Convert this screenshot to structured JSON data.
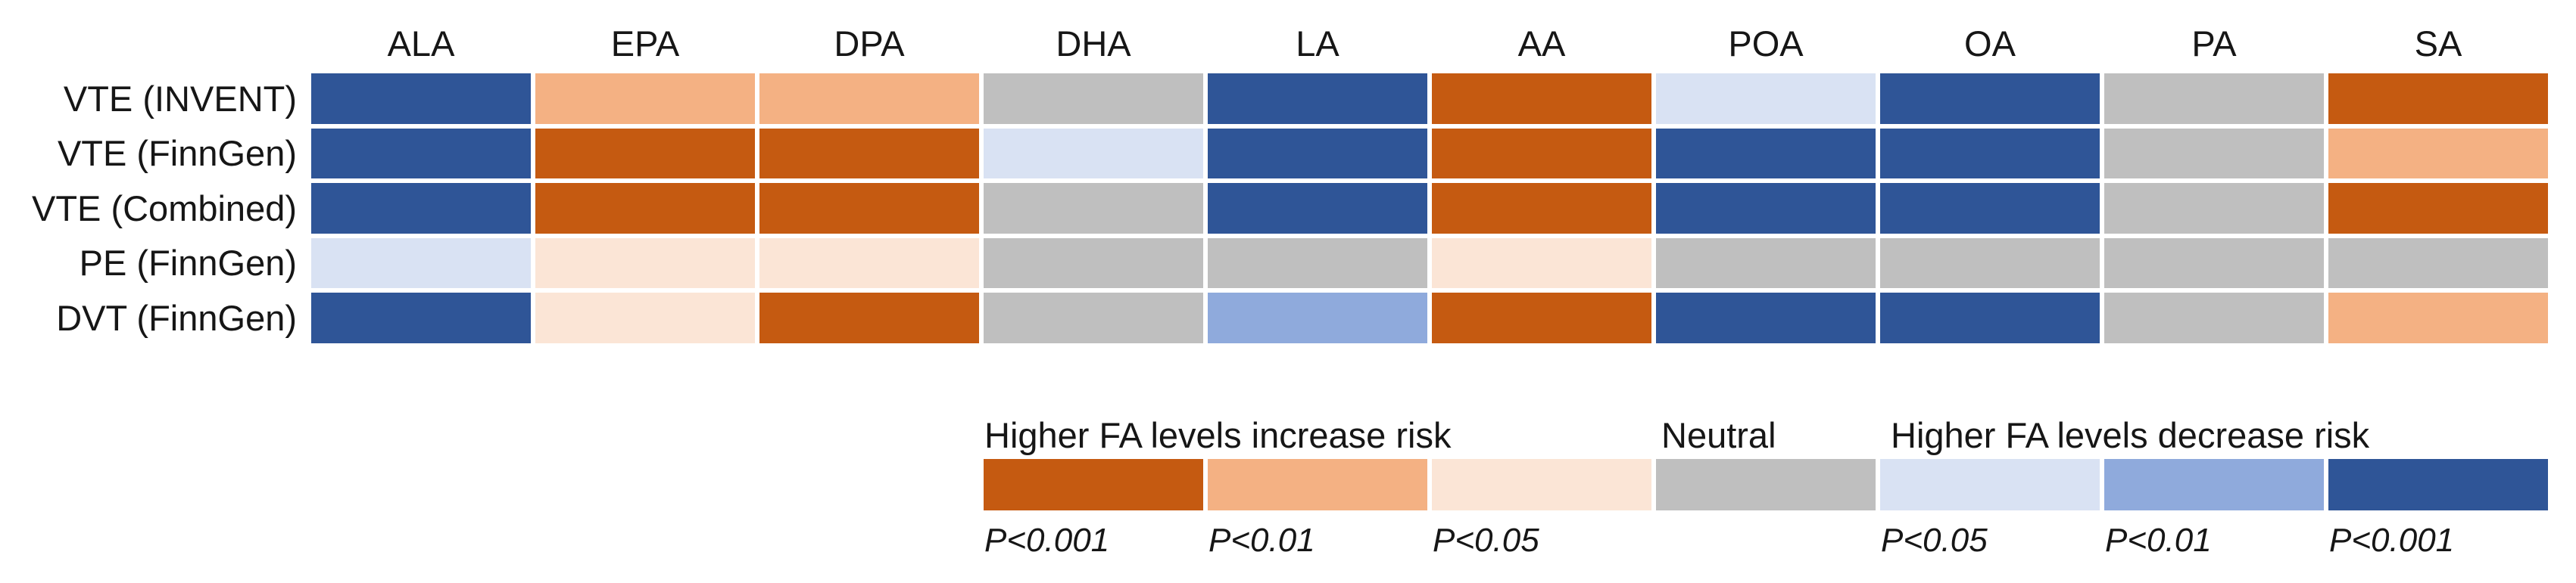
{
  "palette": {
    "increase_p001": "#C55A11",
    "increase_p01": "#F4B183",
    "increase_p05": "#FBE5D6",
    "neutral": "#BFBFBF",
    "decrease_p05": "#D9E2F3",
    "decrease_p01": "#8FAADC",
    "decrease_p001": "#2F5597"
  },
  "chart_data": {
    "type": "heatmap",
    "title": "",
    "columns": [
      "ALA",
      "EPA",
      "DPA",
      "DHA",
      "LA",
      "AA",
      "POA",
      "OA",
      "PA",
      "SA"
    ],
    "rows": [
      "VTE (INVENT)",
      "VTE (FinnGen)",
      "VTE (Combined)",
      "PE (FinnGen)",
      "DVT (FinnGen)"
    ],
    "cells": [
      [
        "decrease_p001",
        "increase_p01",
        "increase_p01",
        "neutral",
        "decrease_p001",
        "increase_p001",
        "decrease_p05",
        "decrease_p001",
        "neutral",
        "increase_p001"
      ],
      [
        "decrease_p001",
        "increase_p001",
        "increase_p001",
        "decrease_p05",
        "decrease_p001",
        "increase_p001",
        "decrease_p001",
        "decrease_p001",
        "neutral",
        "increase_p01"
      ],
      [
        "decrease_p001",
        "increase_p001",
        "increase_p001",
        "neutral",
        "decrease_p001",
        "increase_p001",
        "decrease_p001",
        "decrease_p001",
        "neutral",
        "increase_p001"
      ],
      [
        "decrease_p05",
        "increase_p05",
        "increase_p05",
        "neutral",
        "neutral",
        "increase_p05",
        "neutral",
        "neutral",
        "neutral",
        "neutral"
      ],
      [
        "decrease_p001",
        "increase_p05",
        "increase_p001",
        "neutral",
        "decrease_p01",
        "increase_p001",
        "decrease_p001",
        "decrease_p001",
        "neutral",
        "increase_p01"
      ]
    ],
    "legend": {
      "groups": [
        {
          "title": "Higher FA levels increase risk"
        },
        {
          "title": "Neutral"
        },
        {
          "title": "Higher FA levels decrease risk"
        }
      ],
      "swatches": [
        {
          "key": "increase_p001",
          "label": "P<0.001"
        },
        {
          "key": "increase_p01",
          "label": "P<0.01"
        },
        {
          "key": "increase_p05",
          "label": "P<0.05"
        },
        {
          "key": "neutral",
          "label": ""
        },
        {
          "key": "decrease_p05",
          "label": "P<0.05"
        },
        {
          "key": "decrease_p01",
          "label": "P<0.01"
        },
        {
          "key": "decrease_p001",
          "label": "P<0.001"
        }
      ],
      "position": "bottom"
    },
    "grid": false
  }
}
